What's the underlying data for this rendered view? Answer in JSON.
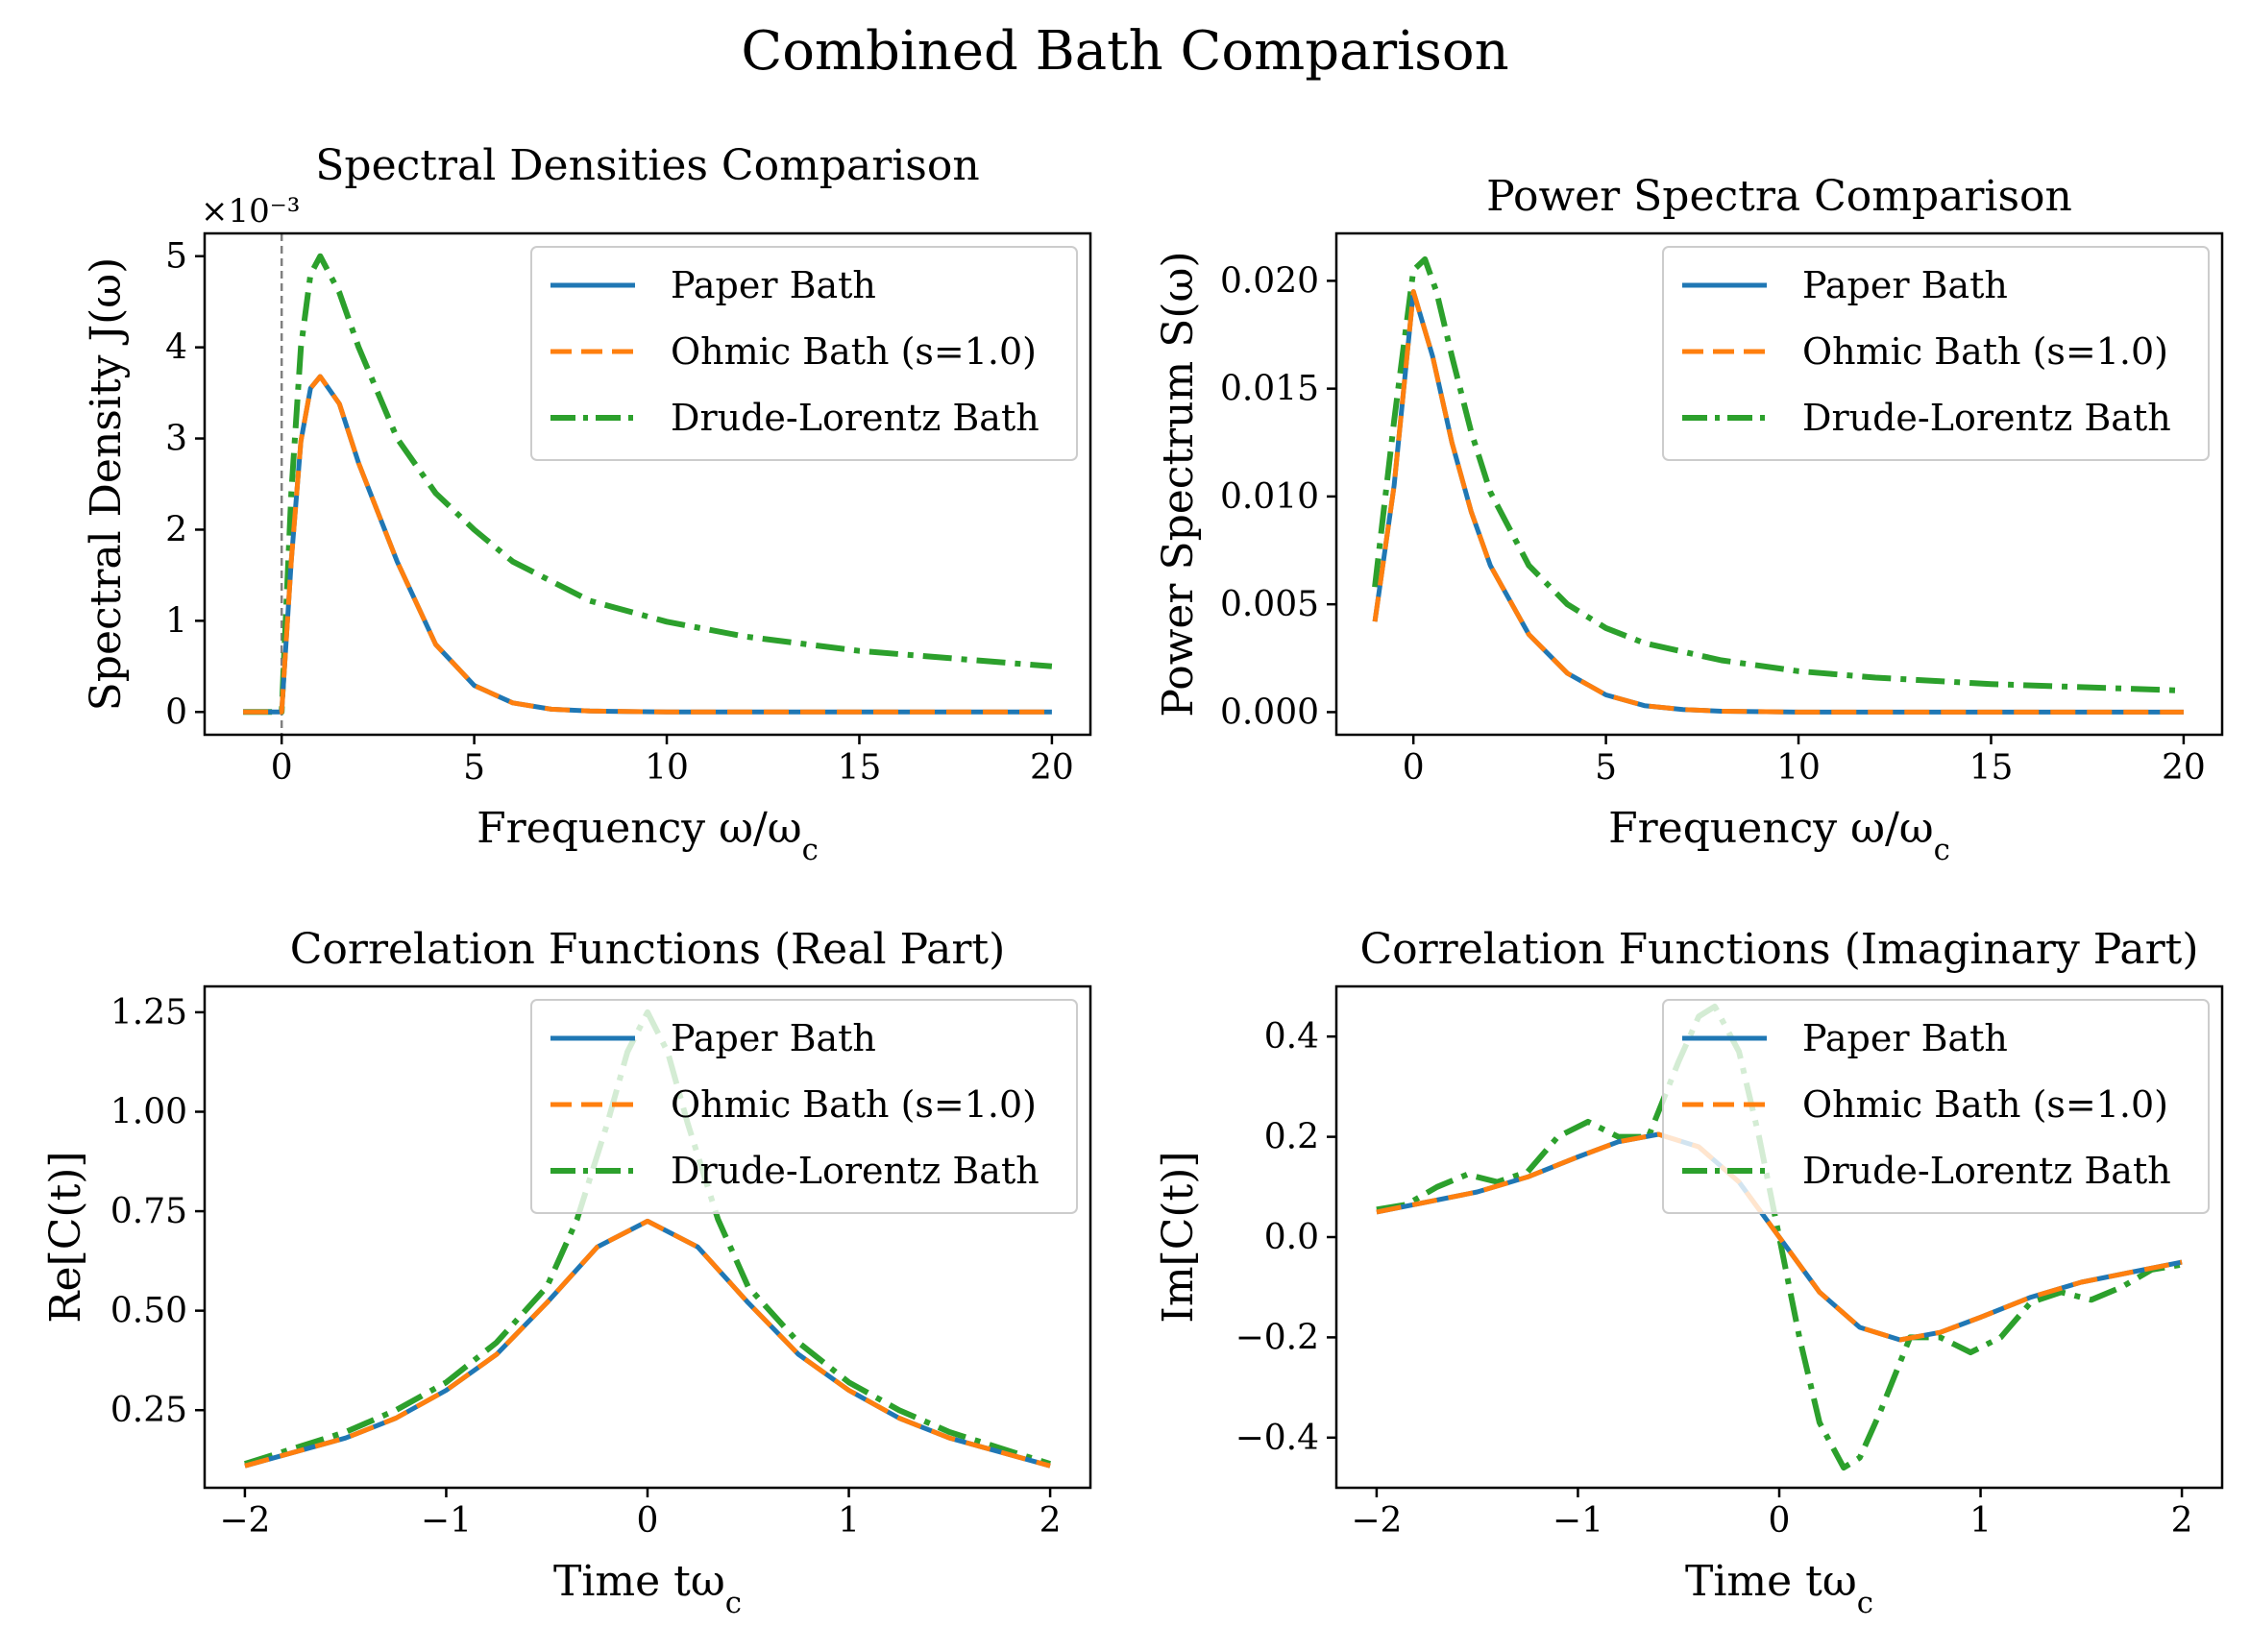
{
  "figure": {
    "title": "Combined Bath Comparison"
  },
  "colors": {
    "paper": "#1f77b4",
    "ohmic": "#ff7f0e",
    "drude": "#2ca02c",
    "vline": "#808080"
  },
  "legend": {
    "paper": "Paper Bath",
    "ohmic": "Ohmic Bath (s=1.0)",
    "drude": "Drude-Lorentz Bath"
  },
  "chart_data": [
    {
      "id": "spectral",
      "type": "line",
      "title": "Spectral Densities Comparison",
      "xlabel": "Frequency ω/ω_c",
      "ylabel": "Spectral Density J(ω)",
      "offset_text": "×10⁻³",
      "xlim": [
        -2,
        21
      ],
      "ylim": [
        -0.25,
        5.25
      ],
      "xticks": [
        0,
        5,
        10,
        15,
        20
      ],
      "yticks": [
        0,
        1,
        2,
        3,
        4,
        5
      ],
      "ytick_labels": [
        "0",
        "1",
        "2",
        "3",
        "4",
        "5"
      ],
      "y_unit_scale": "1e-3",
      "vline_x": 0,
      "legend_loc": "upper right",
      "series": [
        {
          "name": "Paper Bath",
          "key": "paper",
          "x": [
            -1,
            0,
            0.25,
            0.5,
            0.75,
            1,
            1.5,
            2,
            3,
            4,
            5,
            6,
            7,
            8,
            10,
            12,
            15,
            20
          ],
          "y": [
            0,
            0,
            1.66,
            2.97,
            3.55,
            3.68,
            3.38,
            2.73,
            1.65,
            0.74,
            0.29,
            0.1,
            0.03,
            0.01,
            0.0,
            0.0,
            0.0,
            0.0
          ]
        },
        {
          "name": "Ohmic Bath (s=1.0)",
          "key": "ohmic",
          "x": [
            -1,
            0,
            0.25,
            0.5,
            0.75,
            1,
            1.5,
            2,
            3,
            4,
            5,
            6,
            7,
            8,
            10,
            12,
            15,
            20
          ],
          "y": [
            0,
            0,
            1.66,
            2.97,
            3.55,
            3.68,
            3.38,
            2.73,
            1.65,
            0.74,
            0.29,
            0.1,
            0.03,
            0.01,
            0.0,
            0.0,
            0.0,
            0.0
          ]
        },
        {
          "name": "Drude-Lorentz Bath",
          "key": "drude",
          "x": [
            -1,
            0,
            0.25,
            0.5,
            0.75,
            1,
            1.5,
            2,
            3,
            4,
            5,
            6,
            8,
            10,
            12,
            15,
            20
          ],
          "y": [
            0,
            0,
            2.4,
            4.0,
            4.8,
            5.0,
            4.6,
            4.0,
            3.0,
            2.4,
            2.0,
            1.65,
            1.22,
            0.99,
            0.83,
            0.67,
            0.5
          ]
        }
      ]
    },
    {
      "id": "power",
      "type": "line",
      "title": "Power Spectra Comparison",
      "xlabel": "Frequency ω/ω_c",
      "ylabel": "Power Spectrum S(ω)",
      "xlim": [
        -2,
        21
      ],
      "ylim": [
        -0.00105,
        0.0222
      ],
      "xticks": [
        0,
        5,
        10,
        15,
        20
      ],
      "yticks": [
        0.0,
        0.005,
        0.01,
        0.015,
        0.02
      ],
      "ytick_labels": [
        "0.000",
        "0.005",
        "0.010",
        "0.015",
        "0.020"
      ],
      "legend_loc": "upper right",
      "series": [
        {
          "name": "Paper Bath",
          "key": "paper",
          "x": [
            -1,
            -0.5,
            0,
            0.5,
            1,
            1.5,
            2,
            3,
            4,
            5,
            6,
            7,
            8,
            10,
            15,
            20
          ],
          "y": [
            0.0042,
            0.0105,
            0.0195,
            0.0165,
            0.0125,
            0.0093,
            0.0068,
            0.0036,
            0.0018,
            0.0008,
            0.0003,
            0.00012,
            4e-05,
            0.0,
            0.0,
            0.0
          ]
        },
        {
          "name": "Ohmic Bath (s=1.0)",
          "key": "ohmic",
          "x": [
            -1,
            -0.5,
            0,
            0.5,
            1,
            1.5,
            2,
            3,
            4,
            5,
            6,
            7,
            8,
            10,
            15,
            20
          ],
          "y": [
            0.0042,
            0.0105,
            0.0195,
            0.0165,
            0.0125,
            0.0093,
            0.0068,
            0.0036,
            0.0018,
            0.0008,
            0.0003,
            0.00012,
            4e-05,
            0.0,
            0.0,
            0.0
          ]
        },
        {
          "name": "Drude-Lorentz Bath",
          "key": "drude",
          "x": [
            -1,
            -0.5,
            0,
            0.3,
            0.6,
            1,
            1.5,
            2,
            3,
            4,
            5,
            6,
            8,
            10,
            12,
            15,
            20
          ],
          "y": [
            0.0058,
            0.0135,
            0.0205,
            0.021,
            0.0195,
            0.0165,
            0.013,
            0.0102,
            0.0068,
            0.005,
            0.0039,
            0.0032,
            0.0024,
            0.0019,
            0.0016,
            0.0013,
            0.001
          ]
        }
      ]
    },
    {
      "id": "realpart",
      "type": "line",
      "title": "Correlation Functions (Real Part)",
      "xlabel": "Time tω_c",
      "ylabel": "Re[C(t)]",
      "xlim": [
        -2.2,
        2.2
      ],
      "ylim": [
        0.055,
        1.315
      ],
      "xticks": [
        -2,
        -1,
        0,
        1,
        2
      ],
      "xtick_labels": [
        "−2",
        "−1",
        "0",
        "1",
        "2"
      ],
      "yticks": [
        0.25,
        0.5,
        0.75,
        1.0,
        1.25
      ],
      "ytick_labels": [
        "0.25",
        "0.50",
        "0.75",
        "1.00",
        "1.25"
      ],
      "legend_loc": "upper right",
      "series": [
        {
          "name": "Paper Bath",
          "key": "paper",
          "x": [
            -2,
            -1.75,
            -1.5,
            -1.25,
            -1,
            -0.75,
            -0.5,
            -0.25,
            0,
            0.25,
            0.5,
            0.75,
            1,
            1.25,
            1.5,
            1.75,
            2
          ],
          "y": [
            0.11,
            0.145,
            0.18,
            0.23,
            0.3,
            0.39,
            0.52,
            0.66,
            0.725,
            0.66,
            0.52,
            0.39,
            0.3,
            0.23,
            0.18,
            0.145,
            0.11
          ]
        },
        {
          "name": "Ohmic Bath (s=1.0)",
          "key": "ohmic",
          "x": [
            -2,
            -1.75,
            -1.5,
            -1.25,
            -1,
            -0.75,
            -0.5,
            -0.25,
            0,
            0.25,
            0.5,
            0.75,
            1,
            1.25,
            1.5,
            1.75,
            2
          ],
          "y": [
            0.11,
            0.145,
            0.18,
            0.23,
            0.3,
            0.39,
            0.52,
            0.66,
            0.725,
            0.66,
            0.52,
            0.39,
            0.3,
            0.23,
            0.18,
            0.145,
            0.11
          ]
        },
        {
          "name": "Drude-Lorentz Bath",
          "key": "drude",
          "x": [
            -2,
            -1.75,
            -1.5,
            -1.25,
            -1,
            -0.75,
            -0.5,
            -0.35,
            -0.2,
            -0.1,
            0,
            0.1,
            0.2,
            0.35,
            0.5,
            0.75,
            1,
            1.25,
            1.5,
            1.75,
            2
          ],
          "y": [
            0.115,
            0.155,
            0.195,
            0.25,
            0.32,
            0.42,
            0.56,
            0.73,
            0.97,
            1.15,
            1.25,
            1.15,
            0.97,
            0.73,
            0.56,
            0.42,
            0.32,
            0.25,
            0.195,
            0.155,
            0.115
          ]
        }
      ]
    },
    {
      "id": "imagpart",
      "type": "line",
      "title": "Correlation Functions (Imaginary Part)",
      "xlabel": "Time tω_c",
      "ylabel": "Im[C(t)]",
      "xlim": [
        -2.2,
        2.2
      ],
      "ylim": [
        -0.5,
        0.5
      ],
      "xticks": [
        -2,
        -1,
        0,
        1,
        2
      ],
      "xtick_labels": [
        "−2",
        "−1",
        "0",
        "1",
        "2"
      ],
      "yticks": [
        -0.4,
        -0.2,
        0.0,
        0.2,
        0.4
      ],
      "ytick_labels": [
        "−0.4",
        "−0.2",
        "0.0",
        "0.2",
        "0.4"
      ],
      "legend_loc": "upper right",
      "series": [
        {
          "name": "Paper Bath",
          "key": "paper",
          "x": [
            -2,
            -1.75,
            -1.5,
            -1.25,
            -1,
            -0.8,
            -0.6,
            -0.4,
            -0.2,
            0,
            0.2,
            0.4,
            0.6,
            0.8,
            1,
            1.25,
            1.5,
            1.75,
            2
          ],
          "y": [
            0.05,
            0.07,
            0.09,
            0.12,
            0.16,
            0.19,
            0.205,
            0.18,
            0.11,
            0.0,
            -0.11,
            -0.18,
            -0.205,
            -0.19,
            -0.16,
            -0.12,
            -0.09,
            -0.07,
            -0.05
          ]
        },
        {
          "name": "Ohmic Bath (s=1.0)",
          "key": "ohmic",
          "x": [
            -2,
            -1.75,
            -1.5,
            -1.25,
            -1,
            -0.8,
            -0.6,
            -0.4,
            -0.2,
            0,
            0.2,
            0.4,
            0.6,
            0.8,
            1,
            1.25,
            1.5,
            1.75,
            2
          ],
          "y": [
            0.05,
            0.07,
            0.09,
            0.12,
            0.16,
            0.19,
            0.205,
            0.18,
            0.11,
            0.0,
            -0.11,
            -0.18,
            -0.205,
            -0.19,
            -0.16,
            -0.12,
            -0.09,
            -0.07,
            -0.05
          ]
        },
        {
          "name": "Drude-Lorentz Bath",
          "key": "drude",
          "x": [
            -2,
            -1.85,
            -1.7,
            -1.55,
            -1.4,
            -1.25,
            -1.1,
            -0.95,
            -0.8,
            -0.65,
            -0.5,
            -0.4,
            -0.32,
            -0.2,
            -0.1,
            0,
            0.1,
            0.2,
            0.32,
            0.4,
            0.5,
            0.65,
            0.8,
            0.95,
            1.1,
            1.25,
            1.4,
            1.55,
            1.7,
            1.85,
            2
          ],
          "y": [
            0.055,
            0.065,
            0.1,
            0.125,
            0.11,
            0.13,
            0.2,
            0.23,
            0.2,
            0.2,
            0.35,
            0.44,
            0.46,
            0.37,
            0.2,
            0.0,
            -0.2,
            -0.37,
            -0.46,
            -0.44,
            -0.35,
            -0.2,
            -0.2,
            -0.23,
            -0.2,
            -0.13,
            -0.11,
            -0.125,
            -0.1,
            -0.065,
            -0.055
          ]
        }
      ]
    }
  ]
}
